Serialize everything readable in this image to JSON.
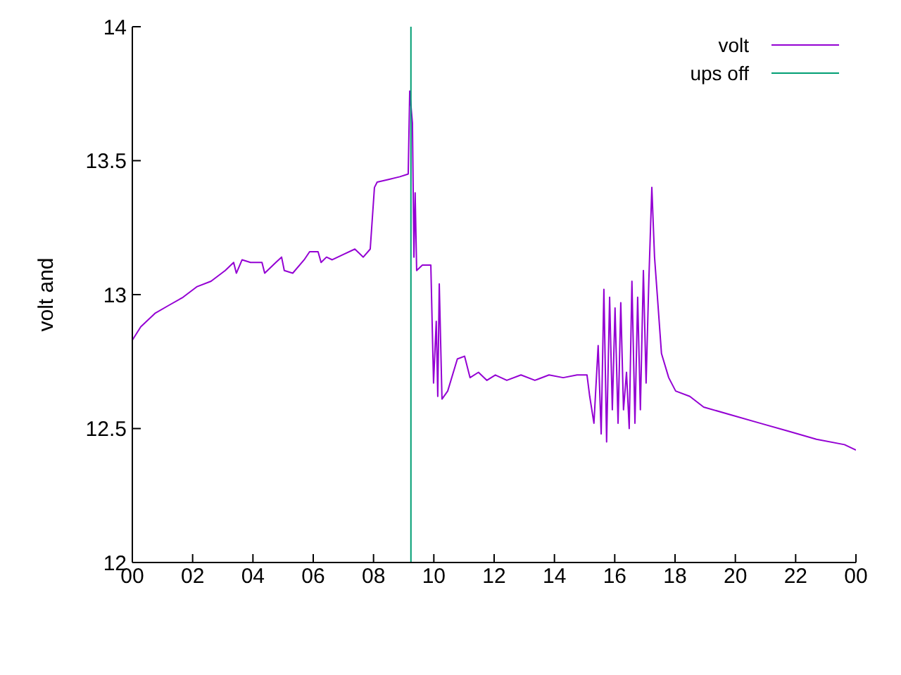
{
  "chart_data": {
    "type": "line",
    "ylabel": "volt and",
    "legend": "top right",
    "xlim": [
      0,
      24
    ],
    "ylim": [
      12,
      14
    ],
    "yticks": [
      12,
      12.5,
      13,
      13.5,
      14
    ],
    "xticks": [
      {
        "value": 0,
        "label": "00"
      },
      {
        "value": 2,
        "label": "02"
      },
      {
        "value": 4,
        "label": "04"
      },
      {
        "value": 6,
        "label": "06"
      },
      {
        "value": 8,
        "label": "08"
      },
      {
        "value": 10,
        "label": "10"
      },
      {
        "value": 12,
        "label": "12"
      },
      {
        "value": 14,
        "label": "14"
      },
      {
        "value": 16,
        "label": "16"
      },
      {
        "value": 18,
        "label": "18"
      },
      {
        "value": 20,
        "label": "20"
      },
      {
        "value": 22,
        "label": "22"
      },
      {
        "value": 24,
        "label": "00"
      }
    ],
    "series": [
      {
        "name": "volt",
        "color": "#9400d3",
        "x": [
          0,
          0.28,
          0.75,
          1.21,
          1.68,
          2.15,
          2.61,
          3.08,
          3.36,
          3.45,
          3.64,
          3.92,
          4.3,
          4.39,
          4.76,
          4.95,
          5.04,
          5.32,
          5.7,
          5.88,
          6.16,
          6.26,
          6.44,
          6.63,
          7,
          7.38,
          7.66,
          7.89,
          8.03,
          8.12,
          8.5,
          8.87,
          9.15,
          9.2,
          9.29,
          9.34,
          9.38,
          9.43,
          9.62,
          9.9,
          9.99,
          10.08,
          10.13,
          10.18,
          10.27,
          10.46,
          10.78,
          11.02,
          11.2,
          11.48,
          11.76,
          12.04,
          12.42,
          12.89,
          13.35,
          13.82,
          14.29,
          14.75,
          15.08,
          15.17,
          15.31,
          15.45,
          15.55,
          15.64,
          15.73,
          15.83,
          15.92,
          16.01,
          16.11,
          16.2,
          16.29,
          16.39,
          16.48,
          16.57,
          16.67,
          16.76,
          16.85,
          16.95,
          17.04,
          17.13,
          17.23,
          17.32,
          17.41,
          17.55,
          17.79,
          18.02,
          18.49,
          18.95,
          19.89,
          20.82,
          21.76,
          22.69,
          23.62,
          24
        ],
        "values": [
          12.83,
          12.88,
          12.93,
          12.96,
          12.99,
          13.03,
          13.05,
          13.09,
          13.12,
          13.08,
          13.13,
          13.12,
          13.12,
          13.08,
          13.12,
          13.14,
          13.09,
          13.08,
          13.13,
          13.16,
          13.16,
          13.12,
          13.14,
          13.13,
          13.15,
          13.17,
          13.14,
          13.17,
          13.4,
          13.42,
          13.43,
          13.44,
          13.45,
          13.76,
          13.64,
          13.14,
          13.38,
          13.09,
          13.11,
          13.11,
          12.67,
          12.9,
          12.62,
          13.04,
          12.61,
          12.64,
          12.76,
          12.77,
          12.69,
          12.71,
          12.68,
          12.7,
          12.68,
          12.7,
          12.68,
          12.7,
          12.69,
          12.7,
          12.7,
          12.62,
          12.52,
          12.81,
          12.48,
          13.02,
          12.45,
          12.99,
          12.57,
          12.95,
          12.52,
          12.97,
          12.57,
          12.71,
          12.5,
          13.05,
          12.52,
          12.99,
          12.57,
          13.09,
          12.67,
          13.05,
          13.4,
          13.14,
          13,
          12.78,
          12.69,
          12.64,
          12.62,
          12.58,
          12.55,
          12.52,
          12.49,
          12.46,
          12.44,
          12.42
        ]
      },
      {
        "name": "ups off",
        "color": "#009e73",
        "x": [
          9.24,
          9.24
        ],
        "values": [
          12,
          14
        ]
      }
    ]
  }
}
